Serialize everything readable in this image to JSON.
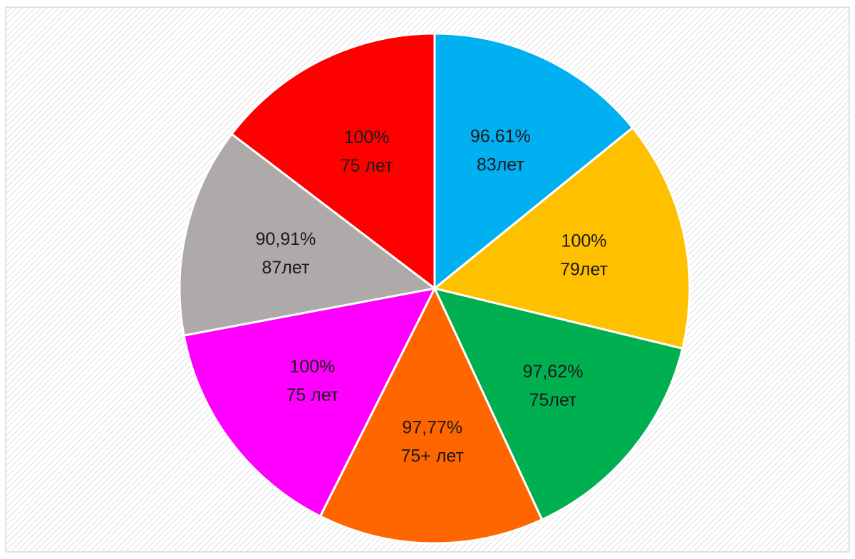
{
  "chart_data": {
    "type": "pie",
    "values": [
      96.61,
      100,
      97.62,
      97.77,
      100,
      90.91,
      100
    ],
    "value_labels": [
      "96.61%",
      "100%",
      "97,62%",
      "97,77%",
      "100%",
      "90,91%",
      "100%"
    ],
    "categories": [
      "83лет",
      "79лет",
      "75лет",
      "75+ лет",
      "75 лет",
      "87лет",
      "75 лет"
    ],
    "colors": [
      "#00b0f0",
      "#ffc000",
      "#00b050",
      "#ff6600",
      "#ff00ff",
      "#aeaaaa",
      "#ff0000"
    ]
  }
}
